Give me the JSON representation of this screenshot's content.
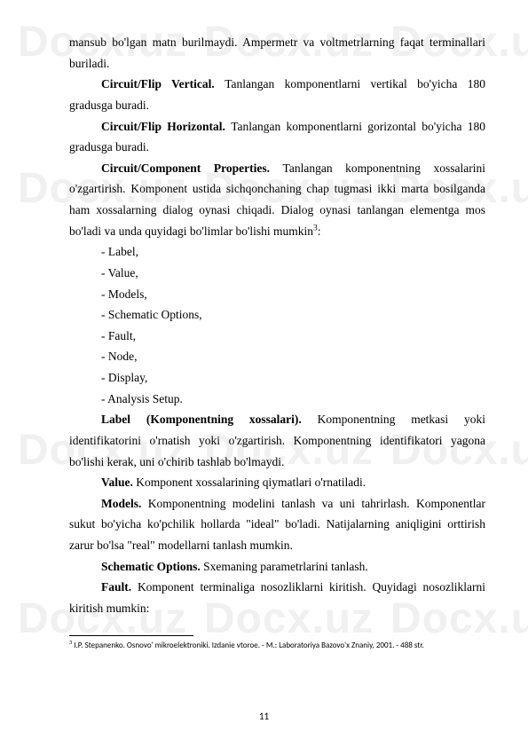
{
  "watermark": "Docx.uz",
  "body": {
    "p1_a": "mansub bo'lgan matn burilmaydi. Ampermetr va  voltmetrlarning faqat terminallari buriladi.",
    "p2_b": "Circuit/Flip Vertical. ",
    "p2_t": "Tanlangan komponentlarni vertikal bo'yicha 180 gradusga buradi.",
    "p3_b": "Circuit/Flip Horizontal. ",
    "p3_t": "Tanlangan komponentlarni gorizontal bo'yicha 180 gradusga buradi.",
    "p4_b": "Circuit/Component Properties. ",
    "p4_t": "Tanlangan komponentning xossalarini o'zgartirish. Komponent ustida sichqonchaning chap tugmasi ikki marta bosilganda ham xossalarning dialog oynasi chiqadi. Dialog oynasi tanlangan elementga mos bo'ladi va unda quyidagi bo'limlar bo'lishi mumkin",
    "sup": "3",
    "p4_end": ":",
    "li1": "- Label,",
    "li2": "- Value,",
    "li3": "- Models,",
    "li4": "- Schematic Options,",
    "li5": "- Fault,",
    "li6": "- Node,",
    "li7": "- Display,",
    "li8": "- Analysis Setup.",
    "p5_b": "Label (Komponentning xossalari). ",
    "p5_t": "Komponentning metkasi yoki identifikatorini o'rnatish yoki o'zgartirish. Komponentning identifikatori yagona bo'lishi kerak, uni o'chirib tashlab bo'lmaydi.",
    "p6_b": "Value. ",
    "p6_t": "Komponent xossalarining qiymatlari o'rnatiladi.",
    "p7_b": "Models. ",
    "p7_t": "Komponentning modelini tanlash va uni tahrirlash. Komponentlar sukut bo'yicha ko'pchilik hollarda \"ideal\" bo'ladi. Natijalarning aniqligini orttirish zarur bo'lsa \"real\" modellarni tanlash mumkin.",
    "p8_b": " Schematic Options. ",
    "p8_t": "Sxemaning parametrlarini tanlash.",
    "p9_b": "Fault. ",
    "p9_t": "Komponent terminaliga nosozliklarni kiritish. Quyidagi nosozliklarni kiritish mumkin:"
  },
  "footnote": {
    "marker": "3",
    "text": " I.P. Stepanenko. Osnovo' mikroelektroniki. Izdanie vtoroe. - M.: Laboratoriya Bazovo'x Znaniy, 2001. - 488 str."
  },
  "page_number": "11"
}
